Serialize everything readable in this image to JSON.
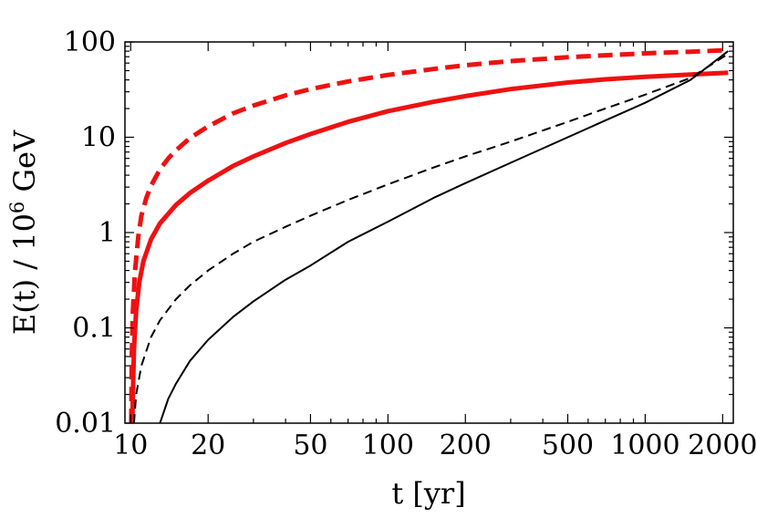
{
  "chart_data": {
    "type": "line",
    "xlabel": "t [yr]",
    "ylabel_base": "E(t) / 10",
    "ylabel_sup": "6",
    "ylabel_unit": " GeV",
    "x_scale": "log",
    "y_scale": "log",
    "xlim": [
      9.5,
      2200
    ],
    "ylim": [
      0.01,
      100
    ],
    "x_ticks": [
      {
        "value": 10,
        "label": "10"
      },
      {
        "value": 20,
        "label": "20"
      },
      {
        "value": 50,
        "label": "50"
      },
      {
        "value": 100,
        "label": "100"
      },
      {
        "value": 200,
        "label": "200"
      },
      {
        "value": 500,
        "label": "500"
      },
      {
        "value": 1000,
        "label": "1000"
      },
      {
        "value": 2000,
        "label": "2000"
      }
    ],
    "y_ticks": [
      {
        "value": 0.01,
        "label": "0.01"
      },
      {
        "value": 0.1,
        "label": "0.1"
      },
      {
        "value": 1,
        "label": "1"
      },
      {
        "value": 10,
        "label": "10"
      },
      {
        "value": 100,
        "label": "100"
      }
    ],
    "grid": false,
    "series": [
      {
        "color": "#ee1111",
        "style": "dashed",
        "width": 5,
        "x": [
          10.05,
          10.1,
          10.2,
          10.4,
          10.7,
          11,
          11.5,
          12,
          13,
          14,
          15,
          17,
          20,
          25,
          30,
          40,
          50,
          70,
          100,
          150,
          200,
          300,
          500,
          700,
          1000,
          1500,
          2100
        ],
        "y": [
          0.01,
          0.05,
          0.15,
          0.4,
          0.9,
          1.5,
          2.3,
          3.1,
          4.6,
          6.0,
          7.3,
          9.8,
          13.0,
          17.8,
          21.5,
          27.5,
          32.0,
          38.5,
          45.0,
          52.0,
          57.0,
          63.0,
          69.0,
          72.5,
          76.0,
          79.0,
          82.0
        ]
      },
      {
        "color": "#ee1111",
        "style": "solid",
        "width": 5,
        "x": [
          10.15,
          10.2,
          10.3,
          10.5,
          10.8,
          11.2,
          12,
          13,
          15,
          17,
          20,
          25,
          30,
          40,
          50,
          70,
          100,
          150,
          200,
          300,
          500,
          700,
          1000,
          1500,
          2100
        ],
        "y": [
          0.01,
          0.02,
          0.06,
          0.15,
          0.3,
          0.5,
          0.85,
          1.25,
          1.95,
          2.6,
          3.5,
          5.0,
          6.3,
          8.7,
          10.8,
          14.5,
          18.8,
          23.5,
          27.0,
          32.0,
          37.5,
          40.5,
          43.0,
          45.5,
          47.5
        ]
      },
      {
        "color": "#000000",
        "style": "dashed",
        "width": 2,
        "x": [
          10.3,
          10.5,
          11,
          12,
          13,
          15,
          17,
          20,
          25,
          30,
          40,
          50,
          70,
          100,
          150,
          200,
          300,
          500,
          700,
          1000,
          1500,
          2100
        ],
        "y": [
          0.01,
          0.02,
          0.04,
          0.08,
          0.12,
          0.2,
          0.28,
          0.4,
          0.6,
          0.8,
          1.15,
          1.5,
          2.2,
          3.2,
          4.8,
          6.3,
          9.0,
          14.5,
          20.0,
          28.0,
          42.0,
          75.0
        ]
      },
      {
        "color": "#000000",
        "style": "solid",
        "width": 2,
        "x": [
          13,
          14,
          15,
          17,
          20,
          25,
          30,
          40,
          50,
          70,
          100,
          150,
          200,
          300,
          500,
          700,
          1000,
          1500,
          2100
        ],
        "y": [
          0.01,
          0.018,
          0.026,
          0.045,
          0.075,
          0.13,
          0.19,
          0.32,
          0.45,
          0.8,
          1.3,
          2.3,
          3.3,
          5.4,
          10.0,
          15.0,
          23.0,
          40.0,
          80.0
        ]
      }
    ]
  }
}
